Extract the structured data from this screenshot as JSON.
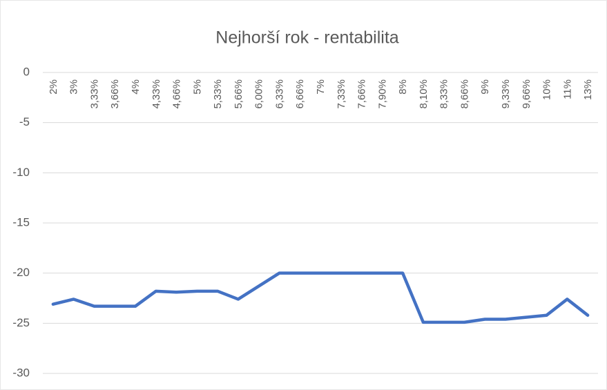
{
  "chart_data": {
    "type": "line",
    "title": "Nejhorší rok - rentabilita",
    "categories": [
      "2%",
      "3%",
      "3,33%",
      "3,66%",
      "4%",
      "4,33%",
      "4,66%",
      "5%",
      "5,33%",
      "5,66%",
      "6,00%",
      "6,33%",
      "6,66%",
      "7%",
      "7,33%",
      "7,66%",
      "7,90%",
      "8%",
      "8,10%",
      "8,33%",
      "8,66%",
      "9%",
      "9,33%",
      "9,66%",
      "10%",
      "11%",
      "13%"
    ],
    "values": [
      -23.1,
      -22.6,
      -23.3,
      -23.3,
      -23.3,
      -21.8,
      -21.9,
      -21.8,
      -21.8,
      -22.6,
      -21.3,
      -20,
      -20,
      -20,
      -20,
      -20,
      -20,
      -20,
      -24.9,
      -24.9,
      -24.9,
      -24.6,
      -24.6,
      -24.4,
      -24.2,
      -22.6,
      -24.2
    ],
    "color": "#4472c4",
    "ylim": [
      -30,
      0
    ],
    "yticks": [
      0,
      -5,
      -10,
      -15,
      -20,
      -25,
      -30
    ],
    "grid": true
  }
}
